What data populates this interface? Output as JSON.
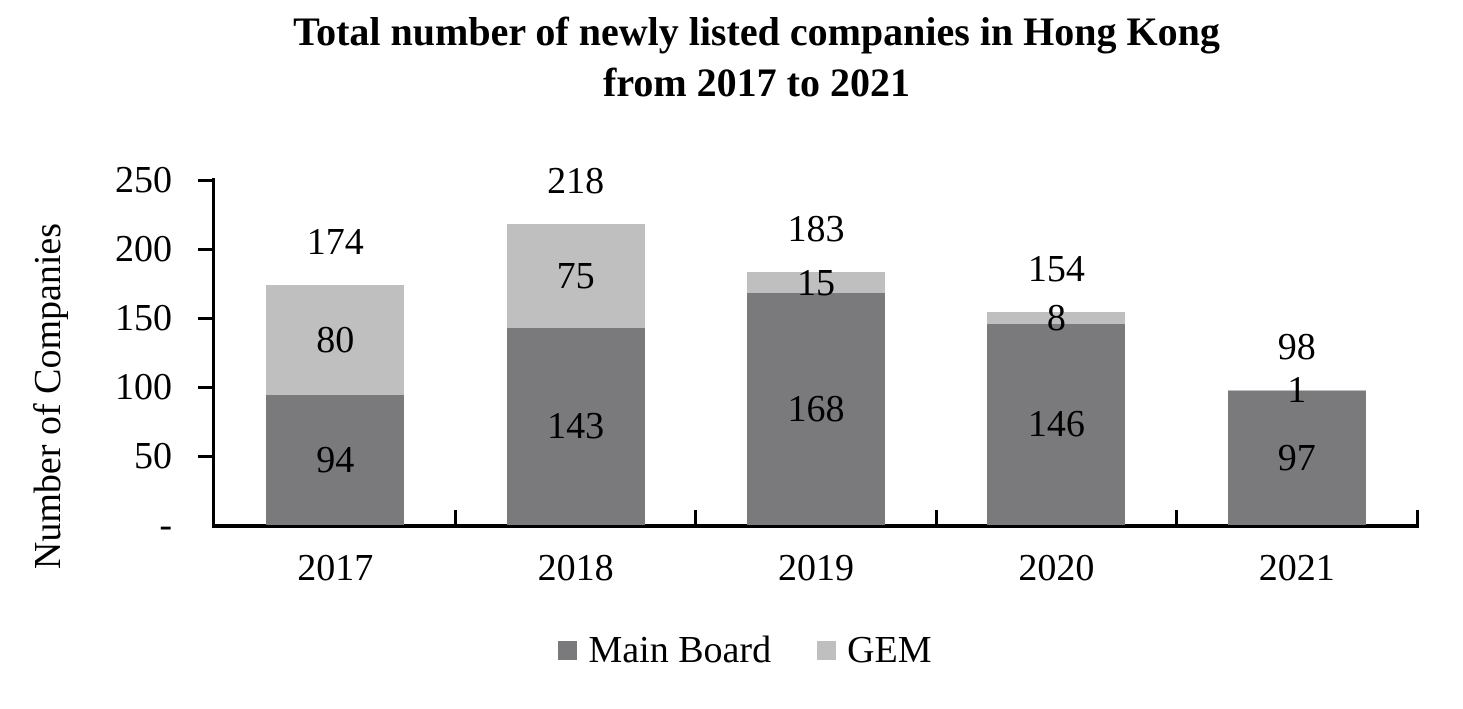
{
  "title": {
    "line1": "Total number of newly listed companies in Hong Kong",
    "line2": "from 2017 to 2021"
  },
  "chart_data": {
    "type": "bar",
    "stacked": true,
    "title": "Total number of newly listed companies in Hong Kong from 2017 to 2021",
    "ylabel": "Number of Companies",
    "xlabel": "",
    "categories": [
      "2017",
      "2018",
      "2019",
      "2020",
      "2021"
    ],
    "series": [
      {
        "name": "Main Board",
        "color": "#7a7a7c",
        "values": [
          94,
          143,
          168,
          146,
          97
        ]
      },
      {
        "name": "GEM",
        "color": "#bfbfbf",
        "values": [
          80,
          75,
          15,
          8,
          1
        ]
      }
    ],
    "totals": [
      174,
      218,
      183,
      154,
      98
    ],
    "ylim": [
      0,
      250
    ],
    "ytick_step": 50,
    "ytick_labels": [
      "-",
      "50",
      "100",
      "150",
      "200",
      "250"
    ],
    "grid": false,
    "legend_position": "bottom",
    "axis_color": "#000000",
    "text_color": "#000000"
  }
}
